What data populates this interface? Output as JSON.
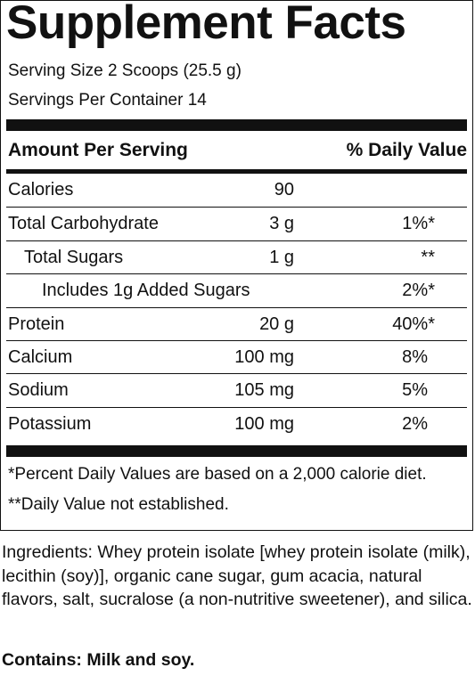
{
  "title": "Supplement Facts",
  "serving_size": "Serving Size 2 Scoops (25.5 g)",
  "servings_per_container": "Servings Per Container 14",
  "header": {
    "amount_label": "Amount Per Serving",
    "dv_label": "% Daily Value"
  },
  "rows": [
    {
      "name": "Calories",
      "amount": "90",
      "dv": ""
    },
    {
      "name": "Total Carbohydrate",
      "amount": "3 g",
      "dv": "1%*"
    },
    {
      "name": "Total Sugars",
      "amount": "1 g",
      "dv": "**"
    },
    {
      "name": "Includes 1g Added Sugars",
      "amount": "",
      "dv": "2%*"
    },
    {
      "name": "Protein",
      "amount": "20 g",
      "dv": "40%*"
    },
    {
      "name": "Calcium",
      "amount": "100 mg",
      "dv": "8%"
    },
    {
      "name": "Sodium",
      "amount": "105 mg",
      "dv": "5%"
    },
    {
      "name": "Potassium",
      "amount": "100 mg",
      "dv": "2%"
    }
  ],
  "footnotes": {
    "percent_dv": "*Percent Daily Values are based on a 2,000 calorie diet.",
    "not_established": "**Daily Value not established."
  },
  "ingredients": "Ingredients: Whey protein isolate [whey protein isolate (milk), lecithin (soy)], organic cane sugar, gum acacia, natural flavors, salt, sucralose (a non-nutritive sweetener), and silica.",
  "contains": "Contains: Milk and soy."
}
